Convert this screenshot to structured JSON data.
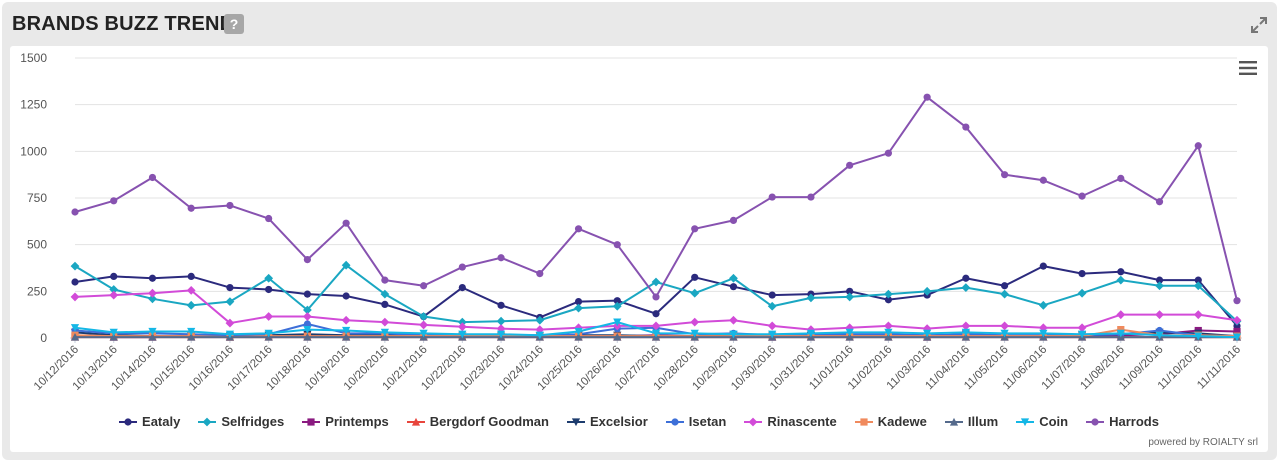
{
  "panel": {
    "title": "BRANDS BUZZ TREND",
    "help_label": "?",
    "powered_by": "powered by ROIALTY srl"
  },
  "chart_data": {
    "type": "line",
    "title": "",
    "xlabel": "",
    "ylabel": "",
    "ylim": [
      0,
      1500
    ],
    "yticks": [
      0,
      250,
      500,
      750,
      1000,
      1250,
      1500
    ],
    "grid": "horizontal",
    "legend": "bottom",
    "x": [
      "10/12/2016",
      "10/13/2016",
      "10/14/2016",
      "10/15/2016",
      "10/16/2016",
      "10/17/2016",
      "10/18/2016",
      "10/19/2016",
      "10/20/2016",
      "10/21/2016",
      "10/22/2016",
      "10/23/2016",
      "10/24/2016",
      "10/25/2016",
      "10/26/2016",
      "10/27/2016",
      "10/28/2016",
      "10/29/2016",
      "10/30/2016",
      "10/31/2016",
      "11/01/2016",
      "11/02/2016",
      "11/03/2016",
      "11/04/2016",
      "11/05/2016",
      "11/06/2016",
      "11/07/2016",
      "11/08/2016",
      "11/09/2016",
      "11/10/2016",
      "11/11/2016"
    ],
    "series": [
      {
        "name": "Eataly",
        "color": "#2b2a7d",
        "marker": "circle",
        "values": [
          300,
          330,
          320,
          330,
          270,
          260,
          235,
          225,
          180,
          115,
          270,
          175,
          110,
          195,
          200,
          130,
          325,
          275,
          230,
          235,
          250,
          205,
          230,
          320,
          280,
          385,
          345,
          355,
          310,
          310,
          65
        ]
      },
      {
        "name": "Selfridges",
        "color": "#1aa7c2",
        "marker": "diamond",
        "values": [
          385,
          260,
          210,
          175,
          195,
          320,
          150,
          390,
          235,
          115,
          85,
          90,
          95,
          160,
          170,
          300,
          240,
          320,
          170,
          215,
          220,
          235,
          250,
          270,
          235,
          175,
          240,
          310,
          280,
          280,
          90
        ]
      },
      {
        "name": "Printemps",
        "color": "#8a1a80",
        "marker": "square",
        "values": [
          10,
          5,
          5,
          10,
          5,
          10,
          15,
          10,
          10,
          10,
          10,
          10,
          10,
          10,
          10,
          15,
          10,
          10,
          5,
          10,
          10,
          10,
          5,
          25,
          10,
          10,
          10,
          15,
          20,
          40,
          35
        ]
      },
      {
        "name": "Bergdorf Goodman",
        "color": "#e8453c",
        "marker": "triangle",
        "values": [
          5,
          5,
          5,
          5,
          5,
          5,
          5,
          5,
          5,
          5,
          5,
          5,
          5,
          5,
          5,
          5,
          5,
          5,
          5,
          5,
          5,
          5,
          5,
          5,
          5,
          5,
          5,
          5,
          5,
          5,
          5
        ]
      },
      {
        "name": "Excelsior",
        "color": "#1d3c6e",
        "marker": "triangle-down",
        "values": [
          30,
          15,
          10,
          10,
          10,
          15,
          20,
          15,
          15,
          10,
          10,
          10,
          10,
          15,
          15,
          10,
          10,
          15,
          10,
          15,
          15,
          10,
          10,
          15,
          10,
          10,
          15,
          20,
          30,
          25,
          10
        ]
      },
      {
        "name": "Isetan",
        "color": "#3d6fd8",
        "marker": "circle",
        "values": [
          40,
          25,
          25,
          20,
          15,
          20,
          75,
          25,
          25,
          15,
          15,
          15,
          15,
          20,
          50,
          55,
          20,
          25,
          15,
          20,
          20,
          20,
          15,
          20,
          15,
          15,
          15,
          20,
          40,
          15,
          10
        ]
      },
      {
        "name": "Rinascente",
        "color": "#d24bd8",
        "marker": "diamond",
        "values": [
          220,
          230,
          240,
          255,
          80,
          115,
          115,
          95,
          85,
          70,
          60,
          50,
          45,
          55,
          65,
          65,
          85,
          95,
          65,
          45,
          55,
          65,
          50,
          65,
          65,
          55,
          55,
          125,
          125,
          125,
          95
        ]
      },
      {
        "name": "Kadewe",
        "color": "#f08a5d",
        "marker": "square",
        "values": [
          15,
          10,
          10,
          10,
          5,
          10,
          10,
          10,
          10,
          10,
          10,
          10,
          10,
          10,
          10,
          10,
          10,
          10,
          10,
          10,
          10,
          10,
          10,
          10,
          10,
          10,
          10,
          45,
          15,
          15,
          10
        ]
      },
      {
        "name": "Illum",
        "color": "#556a8c",
        "marker": "triangle",
        "values": [
          5,
          5,
          5,
          5,
          5,
          5,
          5,
          5,
          5,
          5,
          5,
          5,
          5,
          5,
          5,
          5,
          5,
          5,
          5,
          5,
          5,
          5,
          5,
          5,
          5,
          5,
          5,
          5,
          5,
          5,
          5
        ]
      },
      {
        "name": "Coin",
        "color": "#14b7e6",
        "marker": "triangle-down",
        "values": [
          55,
          30,
          35,
          35,
          20,
          25,
          45,
          40,
          30,
          25,
          20,
          20,
          15,
          35,
          85,
          25,
          25,
          20,
          20,
          25,
          30,
          30,
          25,
          30,
          25,
          25,
          20,
          25,
          15,
          10,
          5
        ]
      },
      {
        "name": "Harrods",
        "color": "#8752b0",
        "marker": "circle",
        "values": [
          675,
          735,
          860,
          695,
          710,
          640,
          420,
          615,
          310,
          280,
          380,
          430,
          345,
          585,
          500,
          220,
          585,
          630,
          755,
          755,
          925,
          990,
          1290,
          1130,
          875,
          845,
          760,
          855,
          730,
          1030,
          200
        ]
      }
    ]
  }
}
